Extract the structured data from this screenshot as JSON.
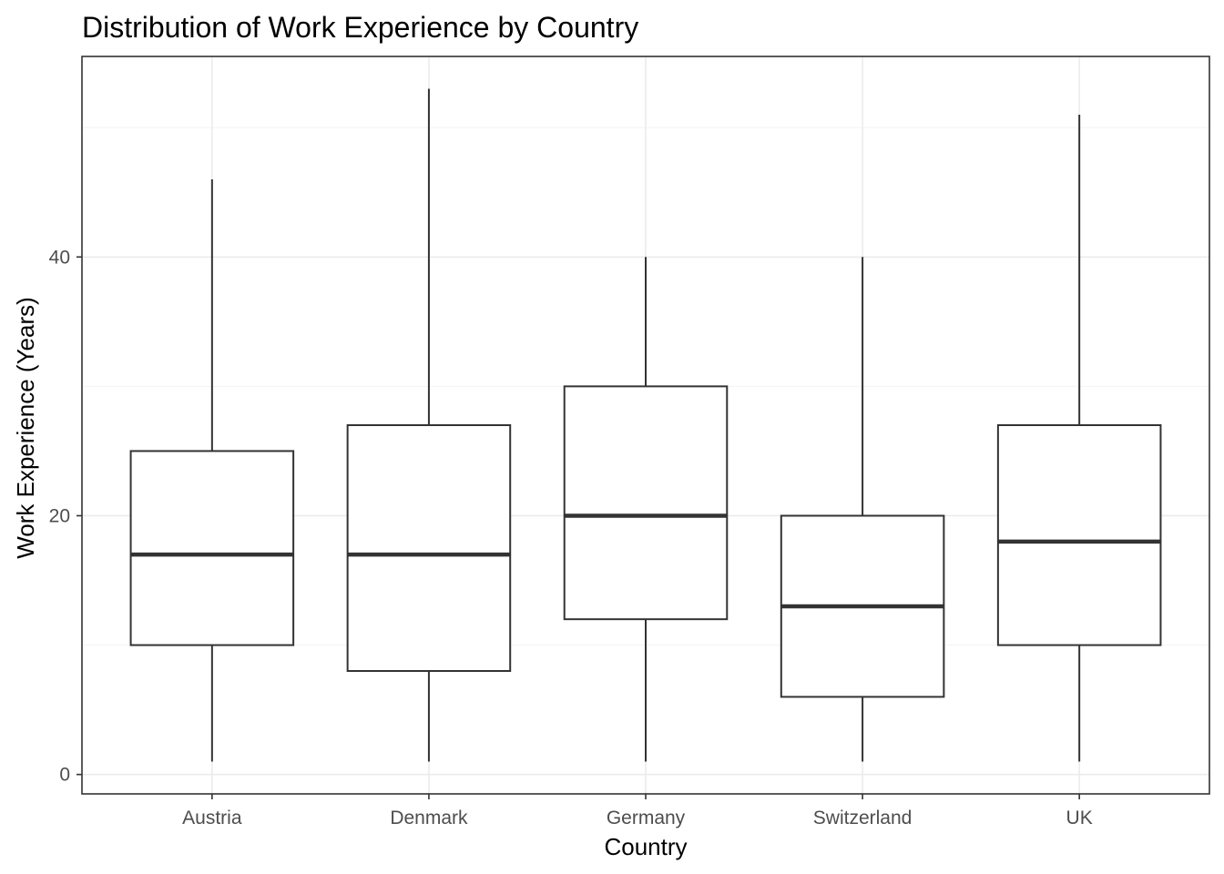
{
  "chart_data": {
    "type": "box",
    "title": "Distribution of Work Experience by Country",
    "xlabel": "Country",
    "ylabel": "Work Experience (Years)",
    "ylim": [
      -1.5,
      55.5
    ],
    "yticks": [
      0,
      20,
      40
    ],
    "grid": true,
    "categories": [
      "Austria",
      "Denmark",
      "Germany",
      "Switzerland",
      "UK"
    ],
    "boxes": [
      {
        "category": "Austria",
        "min": 1,
        "q1": 10,
        "median": 17,
        "q3": 25,
        "max": 46
      },
      {
        "category": "Denmark",
        "min": 1,
        "q1": 8,
        "median": 17,
        "q3": 27,
        "max": 53
      },
      {
        "category": "Germany",
        "min": 1,
        "q1": 12,
        "median": 20,
        "q3": 30,
        "max": 40
      },
      {
        "category": "Switzerland",
        "min": 1,
        "q1": 6,
        "median": 13,
        "q3": 20,
        "max": 40
      },
      {
        "category": "UK",
        "min": 1,
        "q1": 10,
        "median": 18,
        "q3": 27,
        "max": 51
      }
    ]
  }
}
